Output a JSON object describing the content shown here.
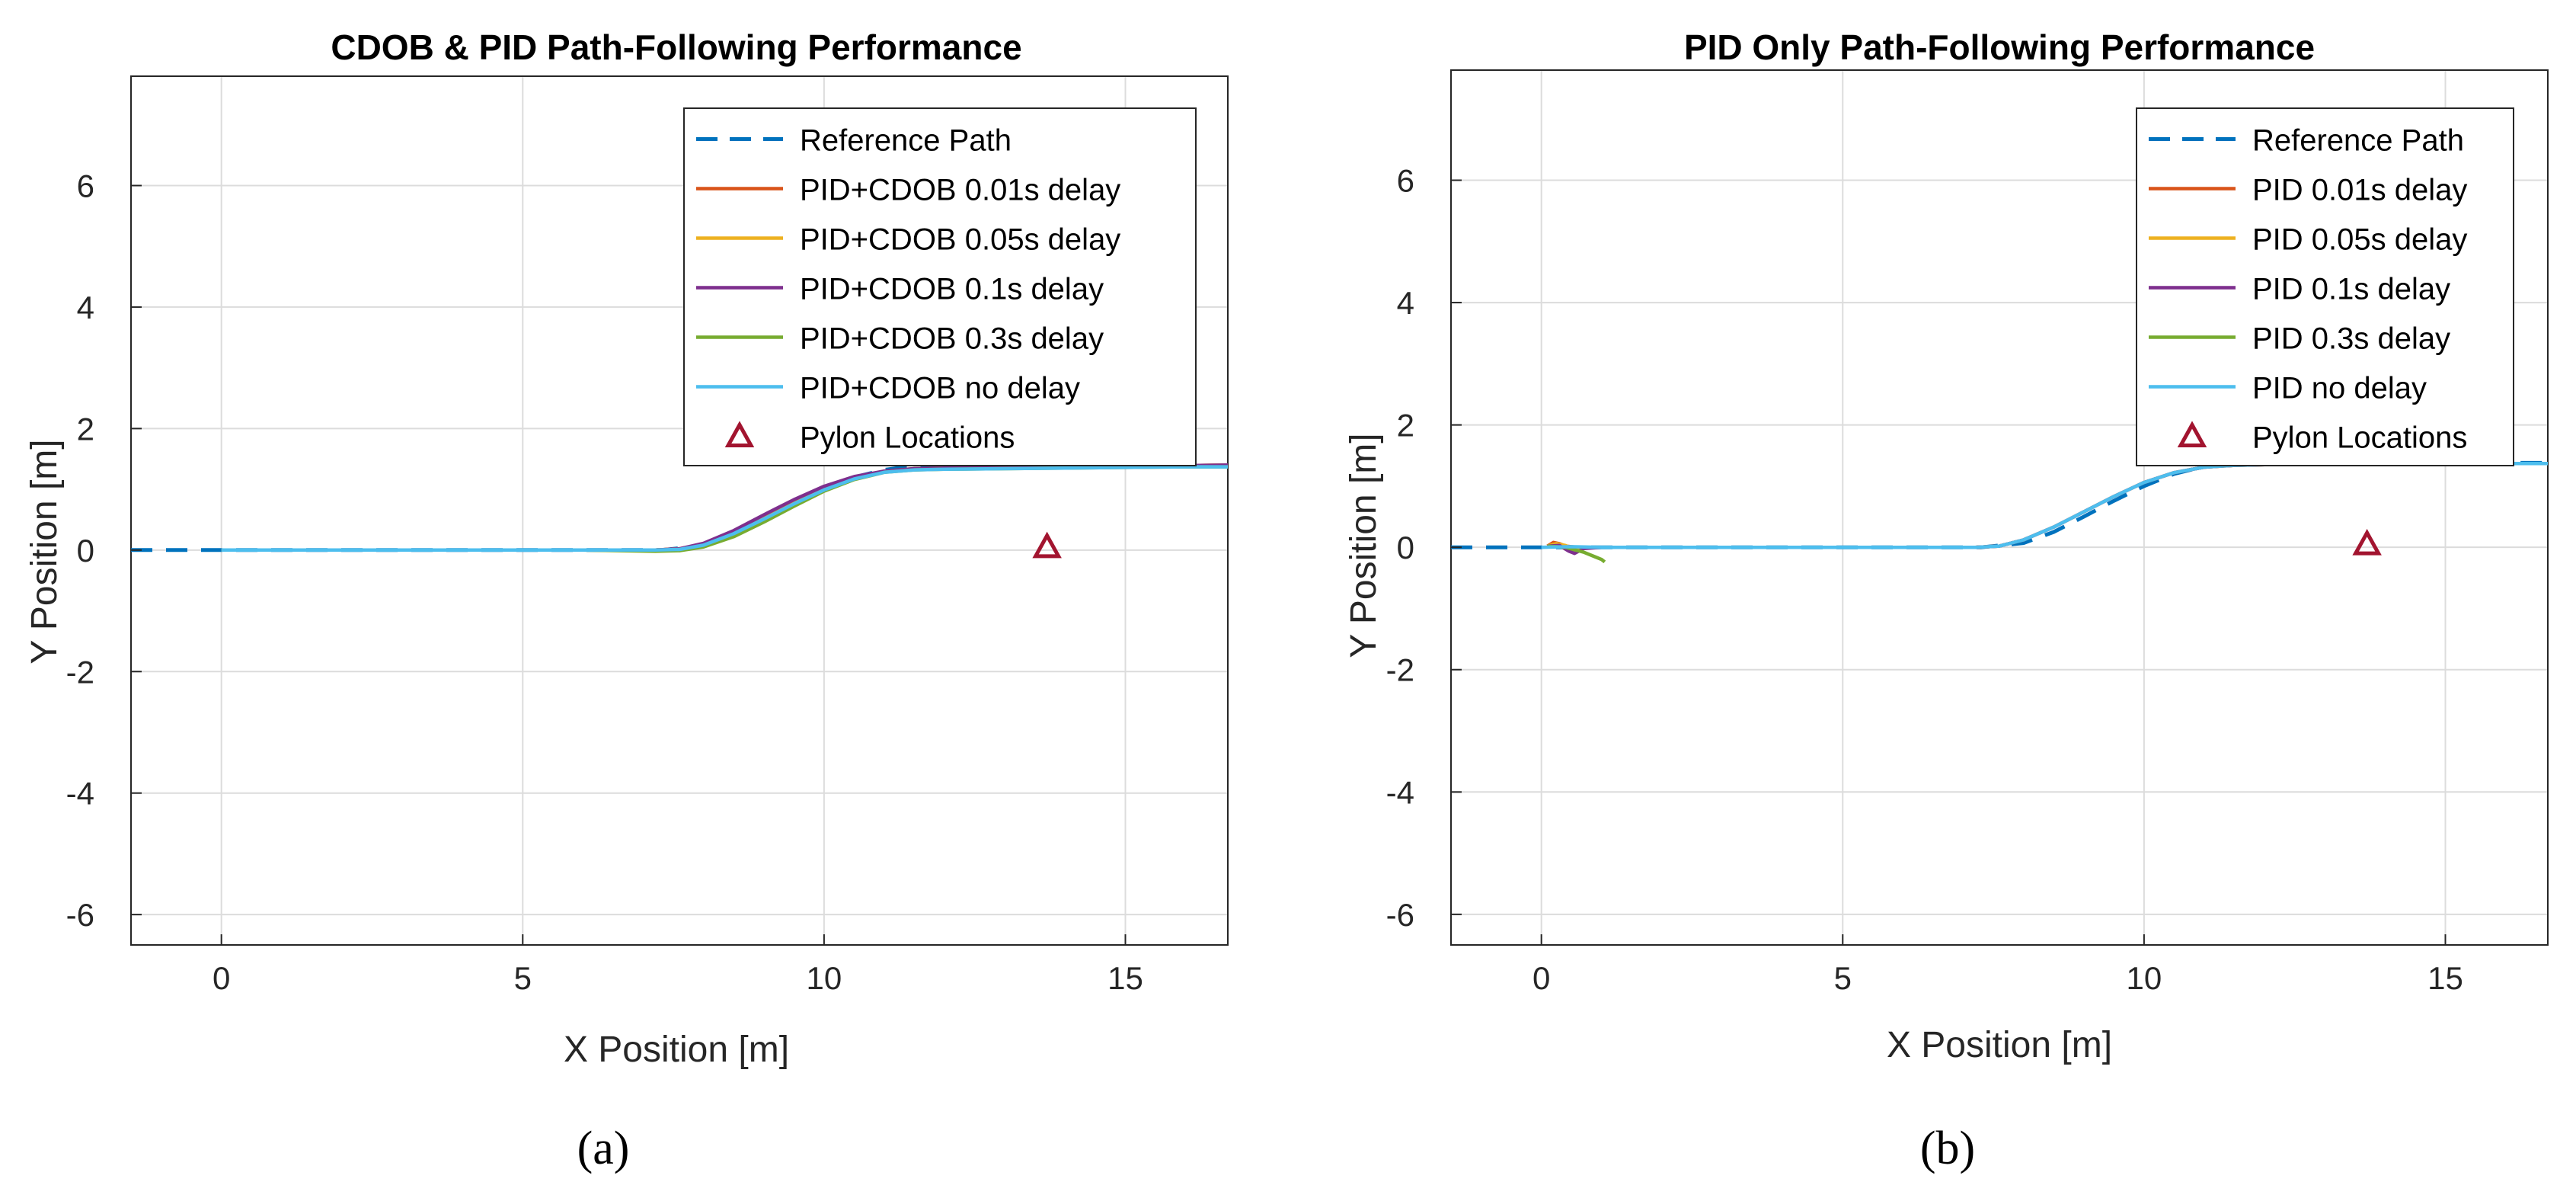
{
  "chart_data": [
    {
      "type": "line",
      "panel_label": "(a)",
      "title": "CDOB & PID Path-Following Performance",
      "xlabel": "X Position [m]",
      "ylabel": "Y Position [m]",
      "xlim": [
        -1.5,
        16.7
      ],
      "ylim": [
        -6.5,
        7.8
      ],
      "xticks": [
        0,
        5,
        10,
        15
      ],
      "yticks": [
        -6,
        -4,
        -2,
        0,
        2,
        4,
        6
      ],
      "xtick_labels": [
        "0",
        "5",
        "10",
        "15"
      ],
      "ytick_labels": [
        "-6",
        "-4",
        "-2",
        "0",
        "2",
        "4",
        "6"
      ],
      "grid": true,
      "legend_position": "top-right",
      "series": [
        {
          "name": "Reference Path",
          "color": "#0072BD",
          "style": "dashed",
          "x": [
            -1.5,
            0,
            2,
            4,
            6,
            7.3,
            8,
            8.5,
            9,
            9.5,
            10,
            10.5,
            11,
            11.3,
            12,
            13,
            14,
            15,
            16,
            16.7
          ],
          "y": [
            0,
            0,
            0,
            0,
            0,
            0,
            0.07,
            0.25,
            0.5,
            0.76,
            1.0,
            1.2,
            1.32,
            1.36,
            1.37,
            1.37,
            1.38,
            1.38,
            1.38,
            1.38
          ]
        },
        {
          "name": "PID+CDOB 0.01s delay",
          "color": "#D95319",
          "style": "solid",
          "x": [
            0,
            2,
            4,
            6,
            7.2,
            7.6,
            8,
            8.5,
            9,
            9.5,
            10,
            10.5,
            11,
            11.5,
            12,
            13,
            14,
            15,
            16,
            16.7
          ],
          "y": [
            0,
            0,
            0,
            0,
            0,
            0.02,
            0.1,
            0.3,
            0.55,
            0.8,
            1.03,
            1.2,
            1.3,
            1.34,
            1.35,
            1.36,
            1.37,
            1.38,
            1.39,
            1.4
          ]
        },
        {
          "name": "PID+CDOB 0.05s delay",
          "color": "#EDB120",
          "style": "solid",
          "x": [
            0,
            2,
            4,
            6,
            7.2,
            7.6,
            8,
            8.5,
            9,
            9.5,
            10,
            10.5,
            11,
            11.5,
            12,
            13,
            14,
            15,
            16,
            16.7
          ],
          "y": [
            0,
            0,
            0,
            0,
            0,
            0.02,
            0.09,
            0.28,
            0.52,
            0.77,
            1.0,
            1.18,
            1.29,
            1.33,
            1.35,
            1.36,
            1.37,
            1.38,
            1.39,
            1.4
          ]
        },
        {
          "name": "PID+CDOB 0.1s delay",
          "color": "#7E2F8E",
          "style": "solid",
          "x": [
            0,
            2,
            4,
            6,
            7.2,
            7.6,
            8,
            8.5,
            9,
            9.5,
            10,
            10.5,
            11,
            11.5,
            12,
            13,
            14,
            15,
            16,
            16.7
          ],
          "y": [
            0,
            0,
            0,
            0,
            0,
            0.02,
            0.11,
            0.32,
            0.58,
            0.83,
            1.05,
            1.21,
            1.3,
            1.34,
            1.35,
            1.36,
            1.37,
            1.38,
            1.39,
            1.4
          ]
        },
        {
          "name": "PID+CDOB 0.3s delay",
          "color": "#77AC30",
          "style": "solid",
          "x": [
            0,
            2,
            4,
            6,
            7.2,
            7.6,
            8,
            8.5,
            9,
            9.5,
            10,
            10.5,
            11,
            11.5,
            12,
            13,
            14,
            15,
            16,
            16.7
          ],
          "y": [
            0,
            0,
            0,
            0,
            -0.02,
            -0.01,
            0.05,
            0.22,
            0.46,
            0.72,
            0.97,
            1.16,
            1.28,
            1.32,
            1.33,
            1.34,
            1.35,
            1.36,
            1.37,
            1.37
          ]
        },
        {
          "name": "PID+CDOB no delay",
          "color": "#4DBEEE",
          "style": "solid",
          "x": [
            0,
            2,
            4,
            6,
            7.2,
            7.6,
            8,
            8.5,
            9,
            9.5,
            10,
            10.5,
            11,
            11.5,
            12,
            13,
            14,
            15,
            16,
            16.7
          ],
          "y": [
            0,
            0,
            0,
            0,
            0,
            0.01,
            0.08,
            0.27,
            0.51,
            0.76,
            0.99,
            1.17,
            1.28,
            1.32,
            1.33,
            1.34,
            1.35,
            1.36,
            1.37,
            1.37
          ]
        }
      ],
      "markers": [
        {
          "name": "Pylon Locations",
          "color": "#A2142F",
          "shape": "triangle",
          "x": [
            13.7
          ],
          "y": [
            0.05
          ]
        }
      ]
    },
    {
      "type": "line",
      "panel_label": "(b)",
      "title": "PID Only Path-Following Performance",
      "xlabel": "X Position [m]",
      "ylabel": "Y Position [m]",
      "xlim": [
        -1.5,
        16.7
      ],
      "ylim": [
        -6.5,
        7.8
      ],
      "xticks": [
        0,
        5,
        10,
        15
      ],
      "yticks": [
        -6,
        -4,
        -2,
        0,
        2,
        4,
        6
      ],
      "xtick_labels": [
        "0",
        "5",
        "10",
        "15"
      ],
      "ytick_labels": [
        "-6",
        "-4",
        "-2",
        "0",
        "2",
        "4",
        "6"
      ],
      "grid": true,
      "legend_position": "top-right",
      "series": [
        {
          "name": "Reference Path",
          "color": "#0072BD",
          "style": "dashed",
          "x": [
            -1.5,
            0,
            2,
            4,
            6,
            7.3,
            8,
            8.5,
            9,
            9.5,
            10,
            10.5,
            11,
            11.3,
            12,
            13,
            14,
            15,
            16,
            16.7
          ],
          "y": [
            0,
            0,
            0,
            0,
            0,
            0,
            0.07,
            0.25,
            0.5,
            0.76,
            1.0,
            1.2,
            1.32,
            1.36,
            1.37,
            1.37,
            1.38,
            1.38,
            1.38,
            1.38
          ]
        },
        {
          "name": "PID 0.01s delay",
          "color": "#D95319",
          "style": "solid",
          "x": [
            0.1,
            0.2,
            0.3,
            0.4,
            0.6,
            1,
            2,
            4,
            6,
            7.2,
            7.6,
            8,
            8.5,
            9,
            9.5,
            10,
            10.5,
            11,
            11.5,
            12,
            13,
            14,
            15,
            16,
            16.7
          ],
          "y": [
            0.02,
            0.08,
            0.06,
            0.02,
            0,
            0,
            0,
            0,
            0,
            0,
            0.02,
            0.12,
            0.33,
            0.58,
            0.83,
            1.06,
            1.22,
            1.31,
            1.34,
            1.35,
            1.36,
            1.37,
            1.37,
            1.37,
            1.37
          ]
        },
        {
          "name": "PID 0.05s delay",
          "color": "#EDB120",
          "style": "solid",
          "x": [
            0.1,
            0.25,
            0.4,
            0.5,
            0.7,
            1,
            2,
            4,
            6,
            7.2,
            7.6,
            8,
            8.5,
            9,
            9.5,
            10,
            10.5,
            11,
            11.5,
            12,
            13,
            14,
            15,
            16,
            16.7
          ],
          "y": [
            0.02,
            0.06,
            0.03,
            -0.02,
            0,
            0,
            0,
            0,
            0,
            0,
            0.02,
            0.12,
            0.33,
            0.58,
            0.83,
            1.06,
            1.22,
            1.31,
            1.34,
            1.35,
            1.36,
            1.37,
            1.37,
            1.37,
            1.37
          ]
        },
        {
          "name": "PID 0.1s delay",
          "color": "#7E2F8E",
          "style": "solid",
          "x": [
            0.1,
            0.3,
            0.45,
            0.55,
            0.7,
            1,
            2,
            4,
            6,
            7.2,
            7.6,
            8,
            8.5,
            9,
            9.5,
            10,
            10.5,
            11,
            11.5,
            12,
            13,
            14,
            15,
            16,
            16.7
          ],
          "y": [
            0.02,
            0.03,
            -0.06,
            -0.1,
            -0.02,
            0,
            0,
            0,
            0,
            0,
            0.02,
            0.12,
            0.33,
            0.58,
            0.83,
            1.06,
            1.22,
            1.31,
            1.34,
            1.35,
            1.36,
            1.37,
            1.37,
            1.37,
            1.37
          ]
        },
        {
          "name": "PID 0.3s delay",
          "color": "#77AC30",
          "style": "solid",
          "x": [
            0.1,
            0.4,
            0.7,
            0.9,
            1.0,
            1.05
          ],
          "y": [
            0.02,
            0.0,
            -0.08,
            -0.16,
            -0.2,
            -0.24
          ]
        },
        {
          "name": "PID no delay",
          "color": "#4DBEEE",
          "style": "solid",
          "x": [
            0,
            0.5,
            1,
            2,
            4,
            6,
            7.2,
            7.6,
            8,
            8.5,
            9,
            9.5,
            10,
            10.5,
            11,
            11.5,
            12,
            13,
            14,
            15,
            16,
            16.7
          ],
          "y": [
            0,
            0.01,
            0,
            0,
            0,
            0,
            0,
            0.02,
            0.12,
            0.33,
            0.58,
            0.83,
            1.06,
            1.22,
            1.31,
            1.34,
            1.35,
            1.36,
            1.37,
            1.37,
            1.37,
            1.37
          ]
        }
      ],
      "markers": [
        {
          "name": "Pylon Locations",
          "color": "#A2142F",
          "shape": "triangle",
          "x": [
            13.7
          ],
          "y": [
            0.05
          ]
        }
      ]
    }
  ]
}
